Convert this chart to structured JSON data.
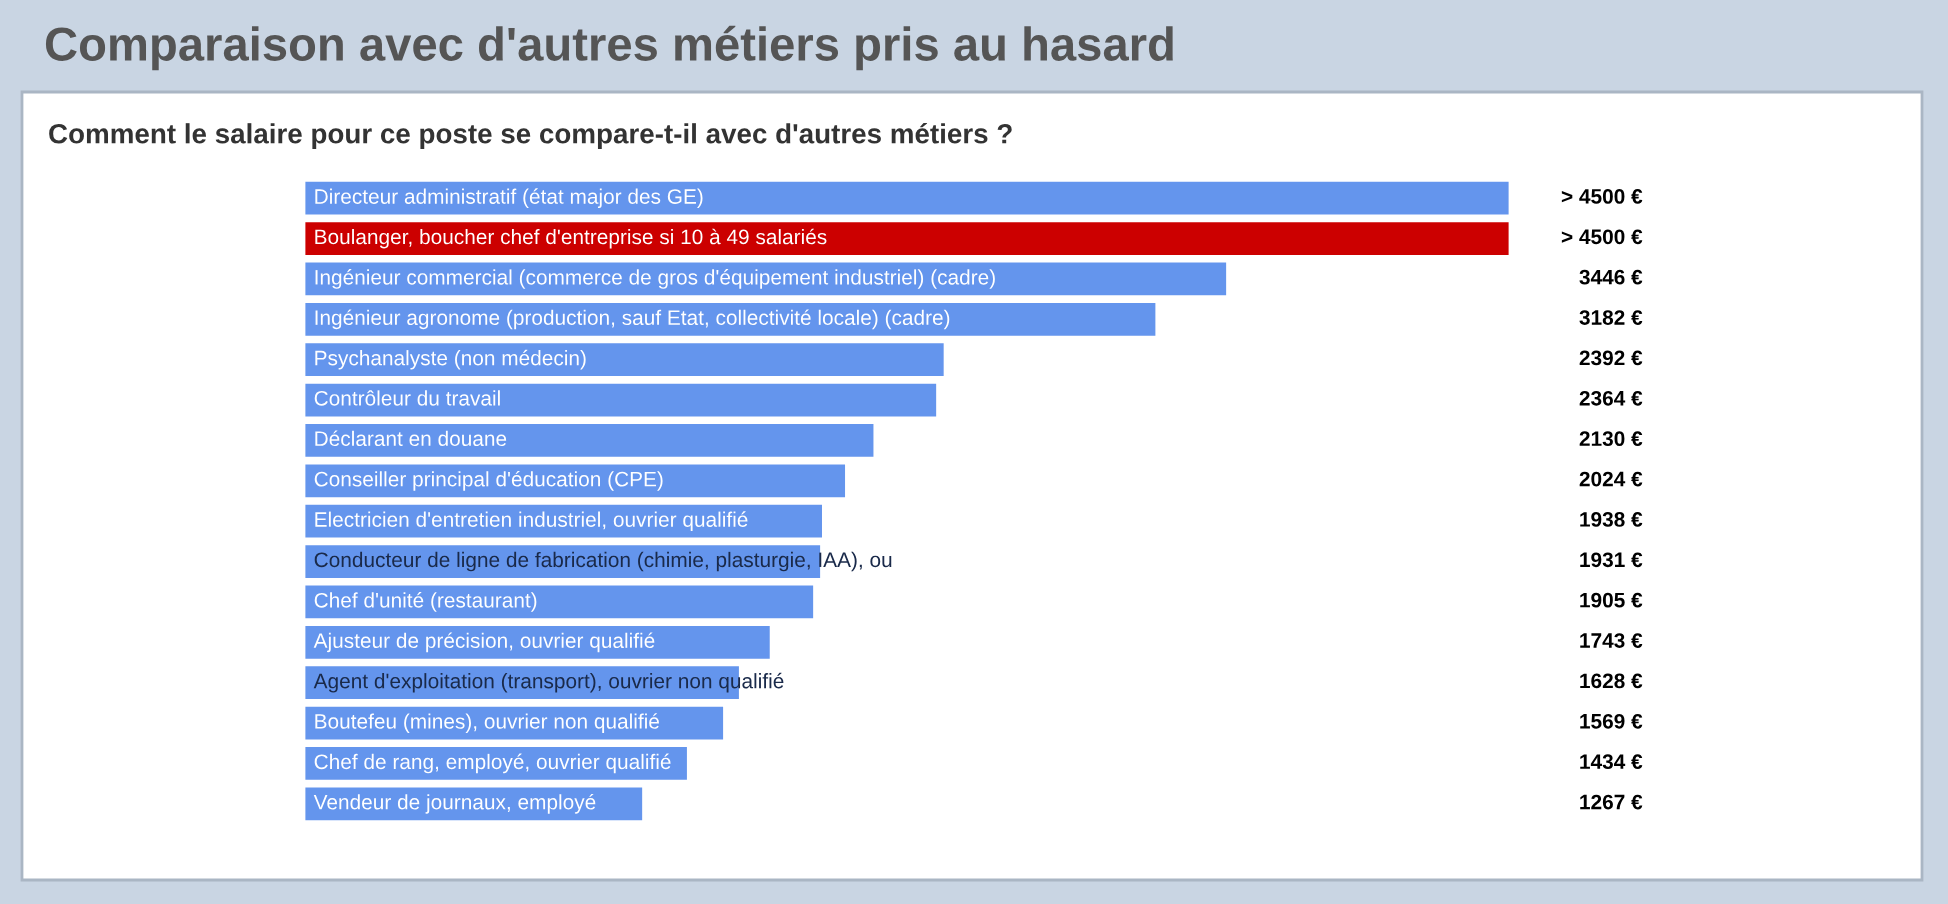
{
  "chart_data": {
    "type": "bar",
    "orientation": "horizontal",
    "title": "Comparaison avec d'autres métiers pris au hasard",
    "subtitle": "Comment le salaire pour ce poste se compare-t-il avec d'autres métiers ?",
    "categories": [
      "Directeur administratif (état major des GE)",
      "Boulanger, boucher chef d'entreprise si 10 à 49 salariés",
      "Ingénieur commercial (commerce de gros d'équipement industriel) (cadre)",
      "Ingénieur agronome (production, sauf Etat, collectivité locale) (cadre)",
      "Psychanalyste (non médecin)",
      "Contrôleur du travail",
      "Déclarant en douane",
      "Conseiller principal d'éducation (CPE)",
      "Electricien d'entretien industriel, ouvrier qualifié",
      "Conducteur de ligne de fabrication (chimie, plasturgie, IAA), ou",
      "Chef d'unité (restaurant)",
      "Ajusteur de précision, ouvrier qualifié",
      "Agent d'exploitation (transport), ouvrier non qualifié",
      "Boutefeu (mines), ouvrier non qualifié",
      "Chef de rang, employé, ouvrier qualifié",
      "Vendeur de journaux, employé"
    ],
    "values": [
      4500,
      4500,
      3446,
      3182,
      2392,
      2364,
      2130,
      2024,
      1938,
      1931,
      1905,
      1743,
      1628,
      1569,
      1434,
      1267
    ],
    "value_labels": [
      "> 4500 €",
      "> 4500 €",
      "3446 €",
      "3182 €",
      "2392 €",
      "2364 €",
      "2130 €",
      "2024 €",
      "1938 €",
      "1931 €",
      "1905 €",
      "1743 €",
      "1628 €",
      "1569 €",
      "1434 €",
      "1267 €"
    ],
    "colors": [
      "#6495ed",
      "#cc0000",
      "#6495ed",
      "#6495ed",
      "#6495ed",
      "#6495ed",
      "#6495ed",
      "#6495ed",
      "#6495ed",
      "#6495ed",
      "#6495ed",
      "#6495ed",
      "#6495ed",
      "#6495ed",
      "#6495ed",
      "#6495ed"
    ],
    "legend": false
  }
}
